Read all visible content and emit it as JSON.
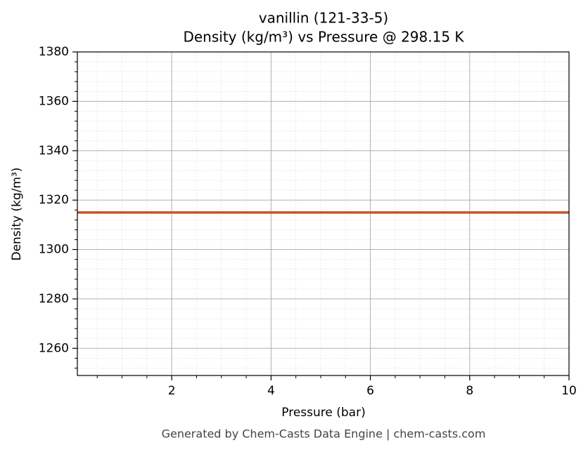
{
  "chart_data": {
    "type": "line",
    "title": "vanillin (121-33-5)",
    "subtitle": "Density (kg/m³) vs Pressure @ 298.15 K",
    "x_label": "Pressure (bar)",
    "y_label": "Density (kg/m³)",
    "footer": "Generated by Chem-Casts Data Engine | chem-casts.com",
    "x": [
      0.1,
      10
    ],
    "series": [
      {
        "color": "#c4562b",
        "values": [
          1315,
          1315
        ]
      }
    ],
    "xlim": [
      0.1,
      10
    ],
    "xticks": [
      2,
      4,
      6,
      8,
      10
    ],
    "xminorticks": [
      0.5,
      1,
      1.5,
      2.5,
      3,
      3.5,
      4.5,
      5,
      5.5,
      6.5,
      7,
      7.5,
      8.5,
      9,
      9.5
    ],
    "ylim": [
      1249,
      1380
    ],
    "yticks": [
      1260,
      1280,
      1300,
      1320,
      1340,
      1360,
      1380
    ],
    "yminorticks": [
      1252,
      1256,
      1264,
      1268,
      1272,
      1276,
      1284,
      1288,
      1292,
      1296,
      1304,
      1308,
      1312,
      1316,
      1324,
      1328,
      1332,
      1336,
      1344,
      1348,
      1352,
      1356,
      1364,
      1368,
      1372,
      1376
    ],
    "grid": true
  }
}
